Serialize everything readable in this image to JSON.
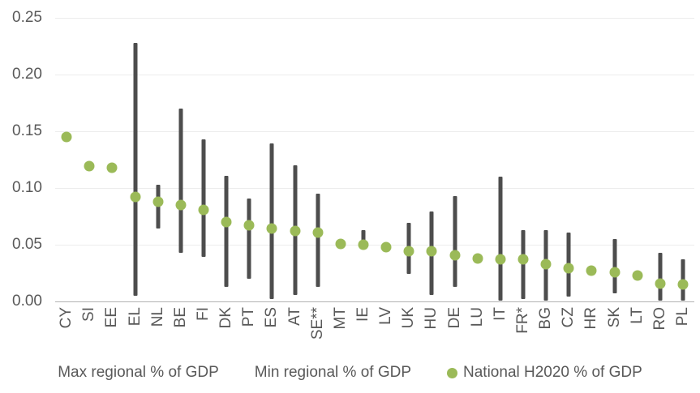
{
  "chart_data": {
    "type": "scatter",
    "title": "",
    "xlabel": "",
    "ylabel": "",
    "categories": [
      "CY",
      "SI",
      "EE",
      "EL",
      "NL",
      "BE",
      "FI",
      "DK",
      "PT",
      "ES",
      "AT",
      "SE**",
      "MT",
      "IE",
      "LV",
      "UK",
      "HU",
      "DE",
      "LU",
      "IT",
      "FR*",
      "BG",
      "CZ",
      "HR",
      "SK",
      "LT",
      "RO",
      "PL"
    ],
    "series": [
      {
        "name": "Max regional % of GDP",
        "marker": "range-bar-top",
        "values": [
          null,
          null,
          null,
          0.228,
          0.103,
          0.17,
          0.143,
          0.111,
          0.091,
          0.139,
          0.12,
          0.095,
          null,
          0.063,
          null,
          0.069,
          0.079,
          0.093,
          null,
          0.11,
          0.063,
          0.063,
          0.061,
          null,
          0.055,
          null,
          0.043,
          0.037
        ]
      },
      {
        "name": "Min regional % of GDP",
        "marker": "range-bar-bottom",
        "values": [
          null,
          null,
          null,
          0.005,
          0.064,
          0.043,
          0.039,
          0.013,
          0.02,
          0.002,
          0.006,
          0.013,
          null,
          0.046,
          null,
          0.024,
          0.006,
          0.013,
          null,
          0.001,
          0.002,
          0.001,
          0.004,
          null,
          0.007,
          null,
          0.001,
          0.001
        ]
      },
      {
        "name": "National H2020 % of GDP",
        "marker": "circle",
        "values": [
          0.145,
          0.119,
          0.118,
          0.092,
          0.088,
          0.085,
          0.081,
          0.07,
          0.067,
          0.064,
          0.062,
          0.061,
          0.051,
          0.05,
          0.048,
          0.044,
          0.044,
          0.041,
          0.038,
          0.037,
          0.037,
          0.033,
          0.029,
          0.027,
          0.026,
          0.023,
          0.016,
          0.015
        ]
      }
    ],
    "ylim": [
      0,
      0.25
    ],
    "yticks": [
      0.25,
      0.2,
      0.15,
      0.1,
      0.05,
      0.0
    ],
    "ytick_labels": [
      "0.25",
      "0.20",
      "0.15",
      "0.10",
      "0.05",
      "0.00"
    ],
    "grid": true,
    "legend_position": "bottom",
    "x_labels_rotated_bottom_to_top": true
  },
  "colors": {
    "dot_green": "#9bba58",
    "bar_gray": "#4d4d4d",
    "text_gray": "#595959",
    "gridline": "#ececec",
    "axis_line": "#b3b3b3",
    "background": "#ffffff"
  }
}
